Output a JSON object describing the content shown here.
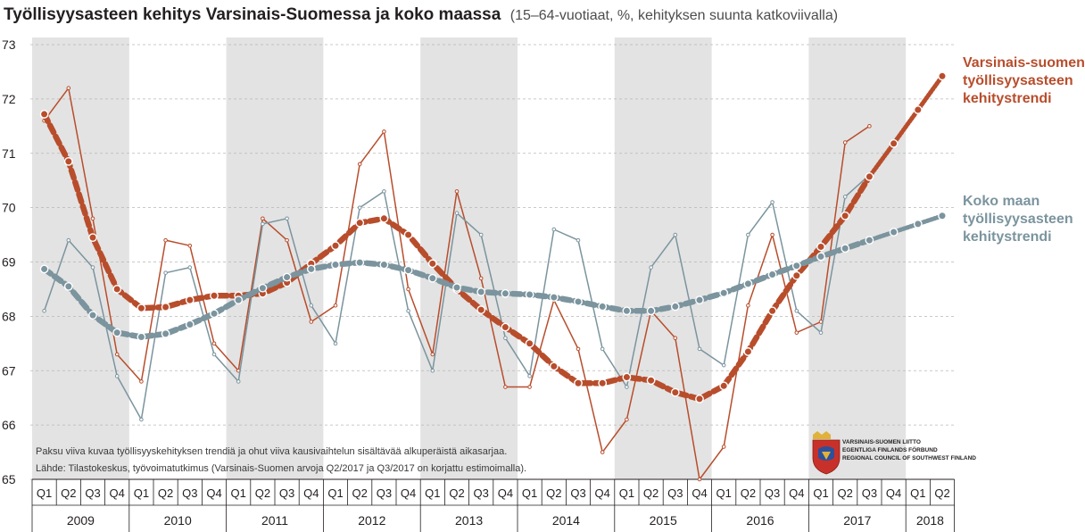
{
  "title": "Työllisyysasteen kehitys Varsinais-Suomessa ja koko maassa",
  "subtitle": "(15–64-vuotiaat, %, kehityksen suunta katkoviivalla)",
  "colors": {
    "varsinais_suomi": "#b84d2c",
    "koko_maa": "#7b949e",
    "band": "#e3e3e3",
    "grid": "#b7b7b7"
  },
  "notes": [
    "Paksu viiva kuvaa työllisyyskehityksen trendiä ja ohut viiva kausivaihtelun sisältävää alkuperäistä aikasarjaa.",
    "Lähde: Tilastokeskus, työvoimatutkimus (Varsinais-Suomen arvoja Q2/2017 ja Q3/2017 on korjattu estimoimalla)."
  ],
  "logo_text": [
    "VARSINAIS-SUOMEN LIITTO",
    "EGENTLIGA FINLANDS FÖRBUND",
    "REGIONAL COUNCIL OF SOUTHWEST FINLAND"
  ],
  "chart_data": {
    "type": "line",
    "ylim": [
      65,
      73
    ],
    "yticks": [
      65,
      66,
      67,
      68,
      69,
      70,
      71,
      72,
      73
    ],
    "grid": true,
    "years": [
      "2009",
      "2010",
      "2011",
      "2012",
      "2013",
      "2014",
      "2015",
      "2016",
      "2017",
      "2018"
    ],
    "quarters_per_year": [
      4,
      4,
      4,
      4,
      4,
      4,
      4,
      4,
      4,
      2
    ],
    "quarter_labels": [
      "Q1",
      "Q2",
      "Q3",
      "Q4"
    ],
    "series": [
      {
        "name": "Varsinais-suomen työllisyysasteen kehitystrendi",
        "role": "trend",
        "color": "#b84d2c",
        "values": [
          71.72,
          70.85,
          69.45,
          68.5,
          68.15,
          68.17,
          68.3,
          68.38,
          68.38,
          68.42,
          68.62,
          68.97,
          69.3,
          69.72,
          69.8,
          69.5,
          68.97,
          68.5,
          68.12,
          67.8,
          67.5,
          67.08,
          66.77,
          66.77,
          66.88,
          66.82,
          66.6,
          66.48,
          66.72,
          67.35,
          68.1,
          68.75,
          69.28,
          69.85,
          70.57,
          71.18,
          71.8,
          72.42
        ],
        "projected_from_index": 34
      },
      {
        "name": "Varsinais-Suomi, alkuperäinen",
        "role": "original",
        "color": "#b84d2c",
        "values": [
          71.6,
          72.2,
          69.8,
          67.3,
          66.8,
          69.4,
          69.3,
          67.5,
          67.0,
          69.8,
          69.4,
          67.9,
          68.2,
          70.8,
          71.4,
          68.5,
          67.3,
          70.3,
          68.7,
          66.7,
          66.7,
          68.3,
          67.4,
          65.5,
          66.1,
          68.1,
          67.6,
          65.0,
          65.6,
          68.2,
          69.5,
          67.7,
          67.9,
          71.2,
          71.5,
          null,
          null,
          null
        ]
      },
      {
        "name": "Koko maan työllisyysasteen kehitystrendi",
        "role": "trend",
        "color": "#7b949e",
        "values": [
          68.87,
          68.55,
          68.02,
          67.7,
          67.62,
          67.68,
          67.85,
          68.05,
          68.3,
          68.52,
          68.72,
          68.87,
          68.95,
          68.99,
          68.95,
          68.85,
          68.7,
          68.53,
          68.45,
          68.42,
          68.4,
          68.35,
          68.27,
          68.18,
          68.1,
          68.1,
          68.18,
          68.3,
          68.43,
          68.6,
          68.77,
          68.93,
          69.1,
          69.25,
          69.4,
          69.55,
          69.7,
          69.85
        ],
        "projected_from_index": 34
      },
      {
        "name": "Koko maa, alkuperäinen",
        "role": "original",
        "color": "#7b949e",
        "values": [
          68.1,
          69.4,
          68.9,
          66.9,
          66.1,
          68.8,
          68.9,
          67.3,
          66.8,
          69.7,
          69.8,
          68.2,
          67.5,
          70.0,
          70.3,
          68.1,
          67.0,
          69.9,
          69.5,
          67.6,
          66.9,
          69.6,
          69.4,
          67.4,
          66.7,
          68.9,
          69.5,
          67.4,
          67.1,
          69.5,
          70.1,
          68.1,
          67.7,
          70.2,
          70.6,
          null,
          null,
          null
        ]
      }
    ],
    "trend_labels": [
      {
        "series": "Varsinais-suomen työllisyysasteen kehitystrendi",
        "lines": [
          "Varsinais-suomen",
          "työllisyysasteen",
          "kehitystrendi"
        ]
      },
      {
        "series": "Koko maan työllisyysasteen kehitystrendi",
        "lines": [
          "Koko maan",
          "työllisyysasteen",
          "kehitystrendi"
        ]
      }
    ]
  }
}
